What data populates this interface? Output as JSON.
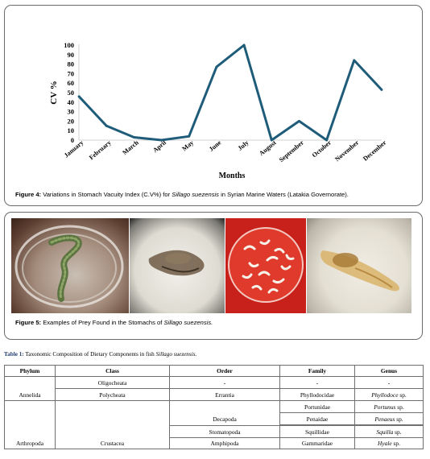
{
  "figure4": {
    "caption_label": "Figure 4:",
    "caption_text_a": " Variations in Stomach Vacuity Index (C.V%) for ",
    "caption_species": "Sillago suezensis",
    "caption_text_b": " in Syrian Marine Waters (Latakia Governorate)."
  },
  "chart_data": {
    "type": "line",
    "xlabel": "Months",
    "ylabel": "CV %",
    "ylim": [
      0,
      100
    ],
    "yticks": [
      0,
      10,
      20,
      30,
      40,
      50,
      60,
      70,
      80,
      90,
      100
    ],
    "categories": [
      "January",
      "February",
      "March",
      "April",
      "May",
      "June",
      "July",
      "August",
      "September",
      "October",
      "November",
      "December"
    ],
    "values": [
      46,
      15,
      3,
      0,
      4,
      77,
      100,
      0,
      20,
      0,
      84,
      53
    ],
    "line_color": "#1f5c7a",
    "grid": false
  },
  "figure5": {
    "caption_label": "Figure 5:",
    "caption_text": " Examples of Prey Found in the Stomachs of ",
    "caption_species": "Sillago suezensis."
  },
  "table1": {
    "title_label": "Table 1:",
    "title_text": " Taxonomic Composition of Dietary Components in fish ",
    "title_species": "Sillago suezensis.",
    "headers": [
      "Phylum",
      "Class",
      "Order",
      "Family",
      "Genus"
    ],
    "annelida": "Annelida",
    "oligocheata": "Oligocheata",
    "dash": "-",
    "polycheata": "Polycheata",
    "errantia": "Errantia",
    "phyllodocidae": "Phyllodocidae",
    "phyllodoce_genus": "Phyllodoce",
    "sp": " sp.",
    "arthropoda": "Arthropoda",
    "crustacea": "Crustacea",
    "decapoda": "Decapoda",
    "portunidae": "Portunidae",
    "portunus_genus": "Portunus",
    "penaidae": "Penaidae",
    "penaeus_genus": "Penaeus",
    "stomatopoda": "Stomatopoda",
    "squillidae": "Squillidae",
    "squilla_genus": "Squilla",
    "amphipoda": "Amphipoda",
    "gammaridae": "Gammaridae",
    "hyale_genus": "Hyale"
  }
}
